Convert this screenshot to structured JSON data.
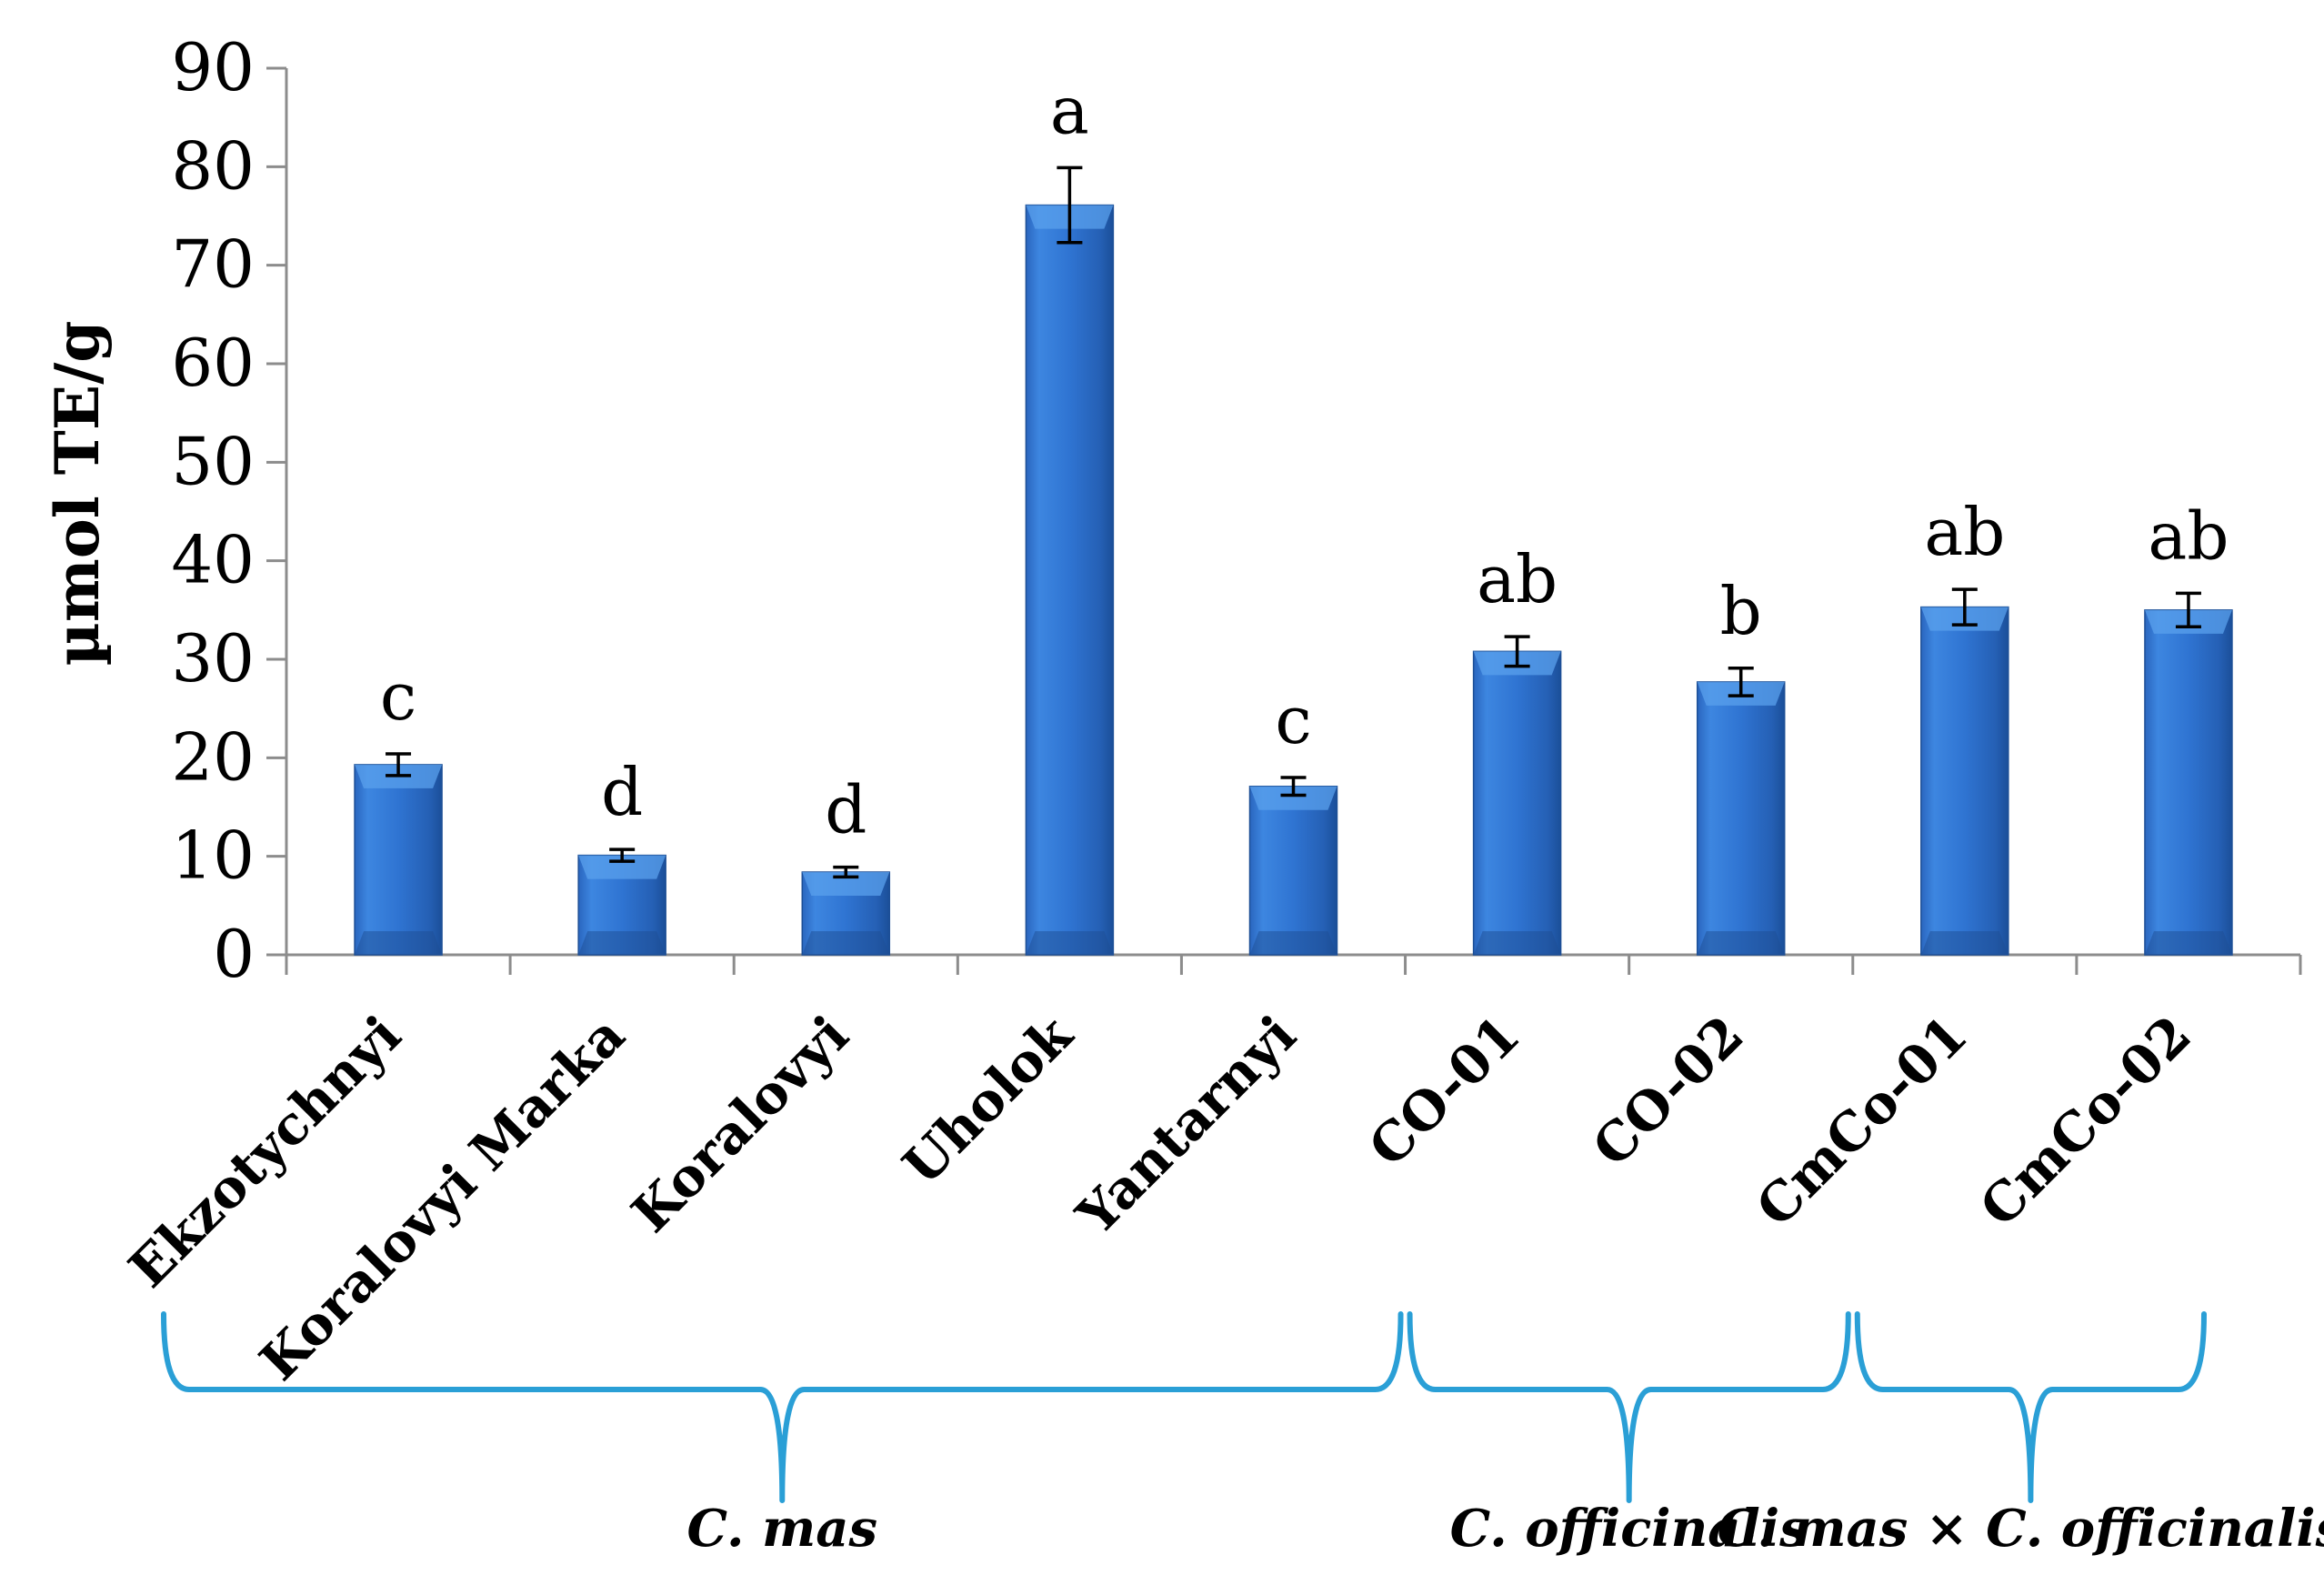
{
  "chart_data": {
    "type": "bar",
    "title": "",
    "xlabel": "",
    "ylabel": "µmol TE/g",
    "ylim": [
      0,
      90
    ],
    "yticks": [
      0,
      10,
      20,
      30,
      40,
      50,
      60,
      70,
      80,
      90
    ],
    "grid": false,
    "categories": [
      "Ekzotychnyi",
      "Koralovyi Marka",
      "Koralovyi",
      "Uholok",
      "Yantarnyi",
      "CO-01",
      "CO-02",
      "CmCo-01",
      "CmCo-02"
    ],
    "values": [
      19.3,
      10.1,
      8.4,
      76.1,
      17.1,
      30.8,
      27.7,
      35.3,
      35.0
    ],
    "errors": [
      1.1,
      0.6,
      0.5,
      3.8,
      0.9,
      1.5,
      1.4,
      1.8,
      1.7
    ],
    "significance": [
      "c",
      "d",
      "d",
      "a",
      "c",
      "ab",
      "b",
      "ab",
      "ab"
    ],
    "bar_color": "#2f72cf",
    "groups": [
      {
        "label": "C. mas",
        "from": 0,
        "to": 4
      },
      {
        "label": "C. officinalis",
        "from": 5,
        "to": 6
      },
      {
        "label": "C. mas × C. officinalis",
        "from": 7,
        "to": 8
      }
    ],
    "brace_color": "#2a9fd6"
  }
}
